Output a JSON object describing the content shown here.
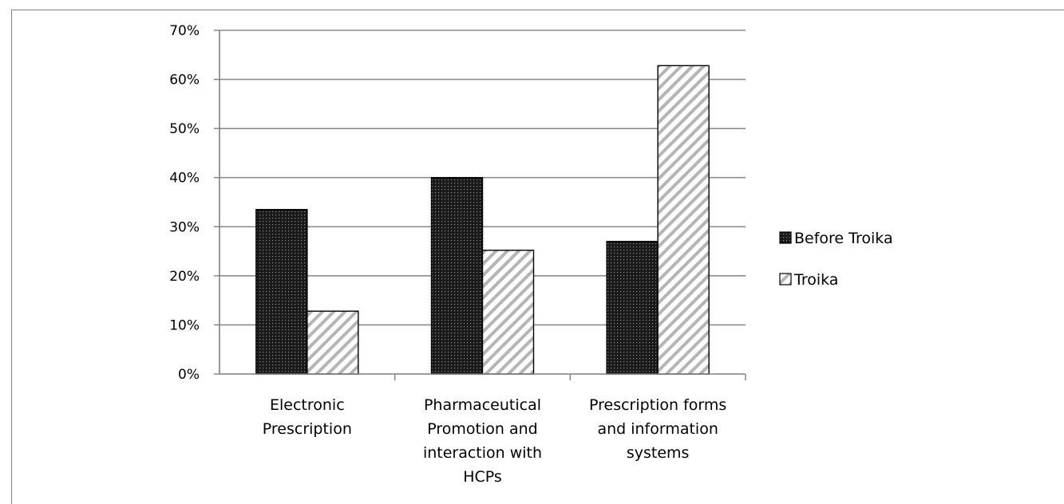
{
  "chart_data": {
    "type": "bar",
    "categories": [
      [
        "Electronic",
        "Prescription"
      ],
      [
        "Pharmaceutical",
        "Promotion and",
        "interaction with",
        "HCPs"
      ],
      [
        "Prescription forms",
        "and information",
        "systems"
      ]
    ],
    "series": [
      {
        "name": "Before Troika",
        "values": [
          33.5,
          40.0,
          27.0
        ],
        "pattern": "dots"
      },
      {
        "name": "Troika",
        "values": [
          12.8,
          25.2,
          62.8
        ],
        "pattern": "hatch"
      }
    ],
    "y_ticks": [
      "0%",
      "10%",
      "20%",
      "30%",
      "40%",
      "50%",
      "60%",
      "70%"
    ],
    "ylim": [
      0,
      70
    ],
    "grid": true,
    "legend_position": "right",
    "colors": {
      "bar_dark": "#1a1a1a",
      "hatch": "#b5b5b5",
      "grid": "#8c8c8c",
      "axis": "#7f7f7f"
    }
  }
}
